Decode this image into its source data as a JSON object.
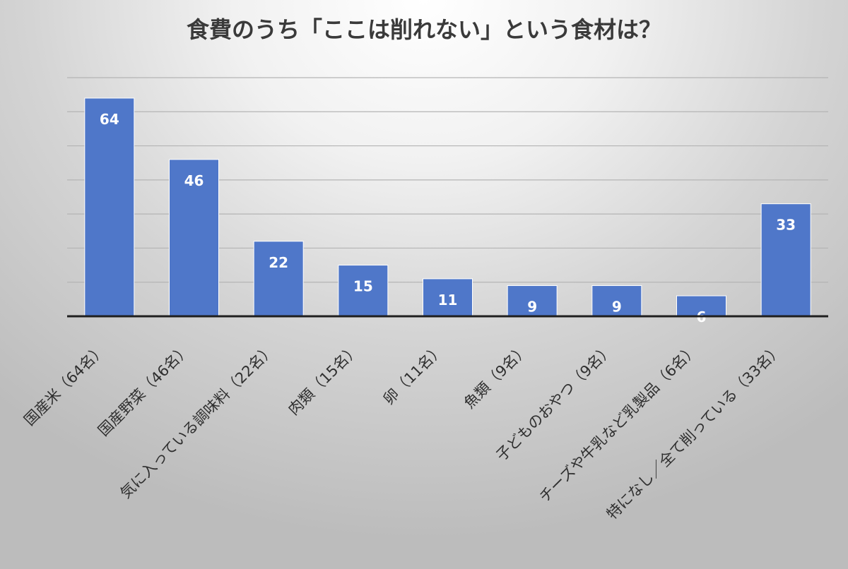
{
  "chart_data": {
    "type": "bar",
    "title": "食費のうち「ここは削れない」という食材は？",
    "categories": [
      "国産米（64名）",
      "国産野菜（46名）",
      "気に入っている調味料（22名）",
      "肉類（15名）",
      "卵（11名）",
      "魚類（9名）",
      "子どものおやつ（9名）",
      "チーズや牛乳など乳製品（6名）",
      "特になし／全て削っている（33名）"
    ],
    "values": [
      64,
      46,
      22,
      15,
      11,
      9,
      9,
      6,
      33
    ],
    "data_labels": [
      "64",
      "46",
      "22",
      "15",
      "11",
      "9",
      "9",
      "6",
      "33"
    ],
    "ylim": [
      0,
      70
    ],
    "gridline_step": 10,
    "grid": true,
    "legend": "none",
    "xlabel": "",
    "ylabel": "",
    "colors": {
      "bar": "#4f77c9",
      "bar_edge": "#ffffff",
      "grid": "#b4b4b4",
      "axis": "#1f1f1f",
      "title": "#3a3a3a"
    }
  }
}
